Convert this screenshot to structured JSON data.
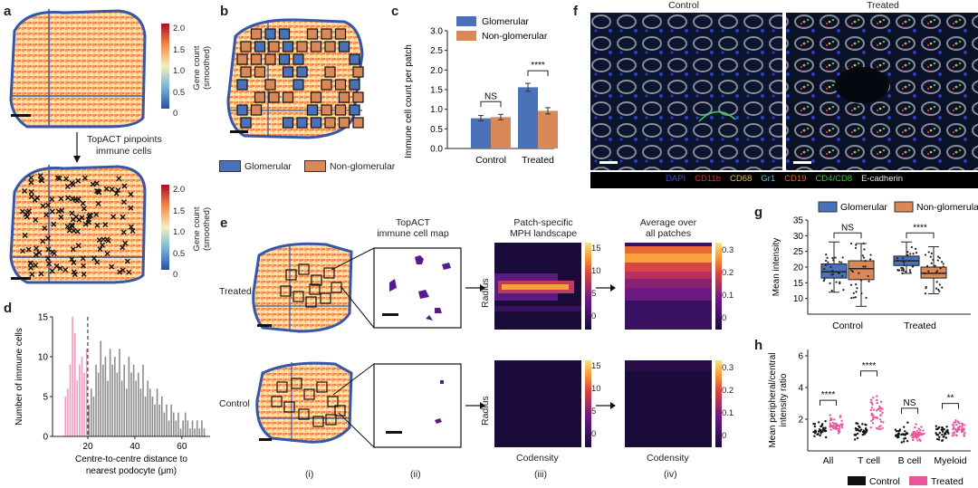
{
  "panels": {
    "a": {
      "label": "a",
      "colorbar_label": "Gene count (smoothed)",
      "colorbar_ticks": [
        "2.0",
        "1.5",
        "1.0",
        "0.5",
        "0"
      ],
      "arrow_text_1": "TopACT pinpoints",
      "arrow_text_2": "immune cells"
    },
    "b": {
      "label": "b",
      "legend": [
        "Glomerular",
        "Non-glomerular"
      ]
    },
    "c": {
      "label": "c"
    },
    "d": {
      "label": "d"
    },
    "e": {
      "label": "e",
      "col_titles": [
        "TopACT",
        "immune cell map",
        "Patch-specific",
        "MPH landscape",
        "Average over",
        "all patches"
      ],
      "row_labels": [
        "Treated",
        "Control"
      ],
      "axis_radius": "Radius",
      "axis_codensity": "Codensity",
      "col_numerals": [
        "(i)",
        "(ii)",
        "(iii)",
        "(iv)"
      ],
      "cbar_iii": [
        "15",
        "10",
        "5",
        "0"
      ],
      "cbar_iv": [
        "0.3",
        "0.2",
        "0.1",
        "0"
      ]
    },
    "f": {
      "label": "f",
      "titles": [
        "Control",
        "Treated"
      ],
      "stains": [
        "DAPI",
        "CD11b",
        "CD68",
        "Gr1",
        "CD19",
        "CD4/CD8",
        "E-cadherin"
      ],
      "stain_colors": [
        "#3a4fd8",
        "#e03030",
        "#e8c040",
        "#40c8d8",
        "#e06a20",
        "#40c040",
        "#e8e8e8"
      ]
    },
    "g": {
      "label": "g"
    },
    "h": {
      "label": "h"
    }
  },
  "chart_data": [
    {
      "panel": "c",
      "type": "bar",
      "categories": [
        "Control",
        "Treated"
      ],
      "series": [
        {
          "name": "Glomerular",
          "color": "#4a72b8",
          "values": [
            0.77,
            1.56
          ],
          "err": [
            0.07,
            0.1
          ]
        },
        {
          "name": "Non-glomerular",
          "color": "#d98958",
          "values": [
            0.8,
            0.96
          ],
          "err": [
            0.07,
            0.08
          ]
        }
      ],
      "ylabel": "Immune cell count per patch",
      "ylim": [
        0,
        3.0
      ],
      "yticks": [
        "0.0",
        "0.5",
        "1.0",
        "1.5",
        "2.0",
        "2.5",
        "3.0"
      ],
      "annotations": [
        "NS",
        "****"
      ]
    },
    {
      "panel": "d",
      "type": "bar",
      "xlabel": "Centre-to-centre distance to nearest podocyte (μm)",
      "ylabel": "Number of immune cells",
      "xticks": [
        "20",
        "40",
        "60"
      ],
      "yticks": [
        "0",
        "5",
        "10",
        "15"
      ],
      "ylim": [
        0,
        15
      ],
      "threshold": 20,
      "bins": [
        {
          "x": 10,
          "v": 5,
          "pink": true
        },
        {
          "x": 11,
          "v": 6,
          "pink": true
        },
        {
          "x": 12,
          "v": 9,
          "pink": true
        },
        {
          "x": 13,
          "v": 15,
          "pink": true
        },
        {
          "x": 14,
          "v": 13,
          "pink": true
        },
        {
          "x": 15,
          "v": 7,
          "pink": true
        },
        {
          "x": 16,
          "v": 9,
          "pink": true
        },
        {
          "x": 17,
          "v": 10,
          "pink": true
        },
        {
          "x": 18,
          "v": 8,
          "pink": true
        },
        {
          "x": 19,
          "v": 11,
          "pink": true
        },
        {
          "x": 20,
          "v": 4
        },
        {
          "x": 21,
          "v": 6
        },
        {
          "x": 22,
          "v": 5
        },
        {
          "x": 23,
          "v": 9
        },
        {
          "x": 24,
          "v": 8
        },
        {
          "x": 25,
          "v": 12
        },
        {
          "x": 26,
          "v": 9
        },
        {
          "x": 27,
          "v": 10
        },
        {
          "x": 28,
          "v": 7
        },
        {
          "x": 29,
          "v": 11
        },
        {
          "x": 30,
          "v": 9
        },
        {
          "x": 31,
          "v": 10
        },
        {
          "x": 32,
          "v": 8
        },
        {
          "x": 33,
          "v": 11
        },
        {
          "x": 34,
          "v": 7
        },
        {
          "x": 35,
          "v": 9
        },
        {
          "x": 36,
          "v": 6
        },
        {
          "x": 37,
          "v": 10
        },
        {
          "x": 38,
          "v": 8
        },
        {
          "x": 39,
          "v": 9
        },
        {
          "x": 40,
          "v": 7
        },
        {
          "x": 41,
          "v": 8
        },
        {
          "x": 42,
          "v": 6
        },
        {
          "x": 43,
          "v": 9
        },
        {
          "x": 44,
          "v": 5
        },
        {
          "x": 45,
          "v": 7
        },
        {
          "x": 46,
          "v": 6
        },
        {
          "x": 47,
          "v": 5
        },
        {
          "x": 48,
          "v": 4
        },
        {
          "x": 49,
          "v": 6
        },
        {
          "x": 50,
          "v": 4
        },
        {
          "x": 51,
          "v": 5
        },
        {
          "x": 52,
          "v": 3
        },
        {
          "x": 53,
          "v": 4
        },
        {
          "x": 54,
          "v": 2
        },
        {
          "x": 55,
          "v": 4
        },
        {
          "x": 56,
          "v": 3
        },
        {
          "x": 57,
          "v": 2
        },
        {
          "x": 58,
          "v": 3
        },
        {
          "x": 59,
          "v": 1
        },
        {
          "x": 60,
          "v": 2
        },
        {
          "x": 61,
          "v": 3
        },
        {
          "x": 62,
          "v": 2
        },
        {
          "x": 63,
          "v": 1
        },
        {
          "x": 64,
          "v": 2
        },
        {
          "x": 65,
          "v": 1
        },
        {
          "x": 66,
          "v": 2
        },
        {
          "x": 67,
          "v": 1
        },
        {
          "x": 68,
          "v": 2
        },
        {
          "x": 69,
          "v": 1
        }
      ]
    },
    {
      "panel": "g",
      "type": "box",
      "categories": [
        "Control",
        "Treated"
      ],
      "legend": [
        "Glomerular",
        "Non-glomerular"
      ],
      "ylabel": "Mean intensity",
      "ylim": [
        5,
        35
      ],
      "yticks": [
        "10",
        "15",
        "20",
        "25",
        "30",
        "35"
      ],
      "boxes": [
        {
          "cat": "Control",
          "series": "Glomerular",
          "min": 12,
          "q1": 16.5,
          "med": 18.5,
          "q3": 21,
          "max": 28,
          "color": "#4a72b8"
        },
        {
          "cat": "Control",
          "series": "Non-glomerular",
          "min": 7.5,
          "q1": 16,
          "med": 19.5,
          "q3": 22,
          "max": 27.5,
          "color": "#d98958"
        },
        {
          "cat": "Treated",
          "series": "Glomerular",
          "min": 18,
          "q1": 20.5,
          "med": 22,
          "q3": 23.5,
          "max": 28,
          "color": "#4a72b8"
        },
        {
          "cat": "Treated",
          "series": "Non-glomerular",
          "min": 11.5,
          "q1": 16.5,
          "med": 18,
          "q3": 20,
          "max": 26.5,
          "color": "#d98958"
        }
      ],
      "annotations": [
        "NS",
        "****"
      ]
    },
    {
      "panel": "h",
      "type": "scatter",
      "categories": [
        "All",
        "T cell",
        "B cell",
        "Myeloid"
      ],
      "legend": [
        "Control",
        "Treated"
      ],
      "ylabel": "Mean peripheral/central intensity ratio",
      "yticks": [
        "2",
        "4",
        "6"
      ],
      "ylim": [
        0,
        6.4
      ],
      "annotations": [
        "****",
        "****",
        "NS",
        "**"
      ],
      "centers": [
        {
          "cat": "All",
          "control": 1.3,
          "treated": 1.55
        },
        {
          "cat": "T cell",
          "control": 1.2,
          "treated": 2.1
        },
        {
          "cat": "B cell",
          "control": 1.05,
          "treated": 1.0
        },
        {
          "cat": "Myeloid",
          "control": 1.1,
          "treated": 1.35
        }
      ]
    }
  ]
}
